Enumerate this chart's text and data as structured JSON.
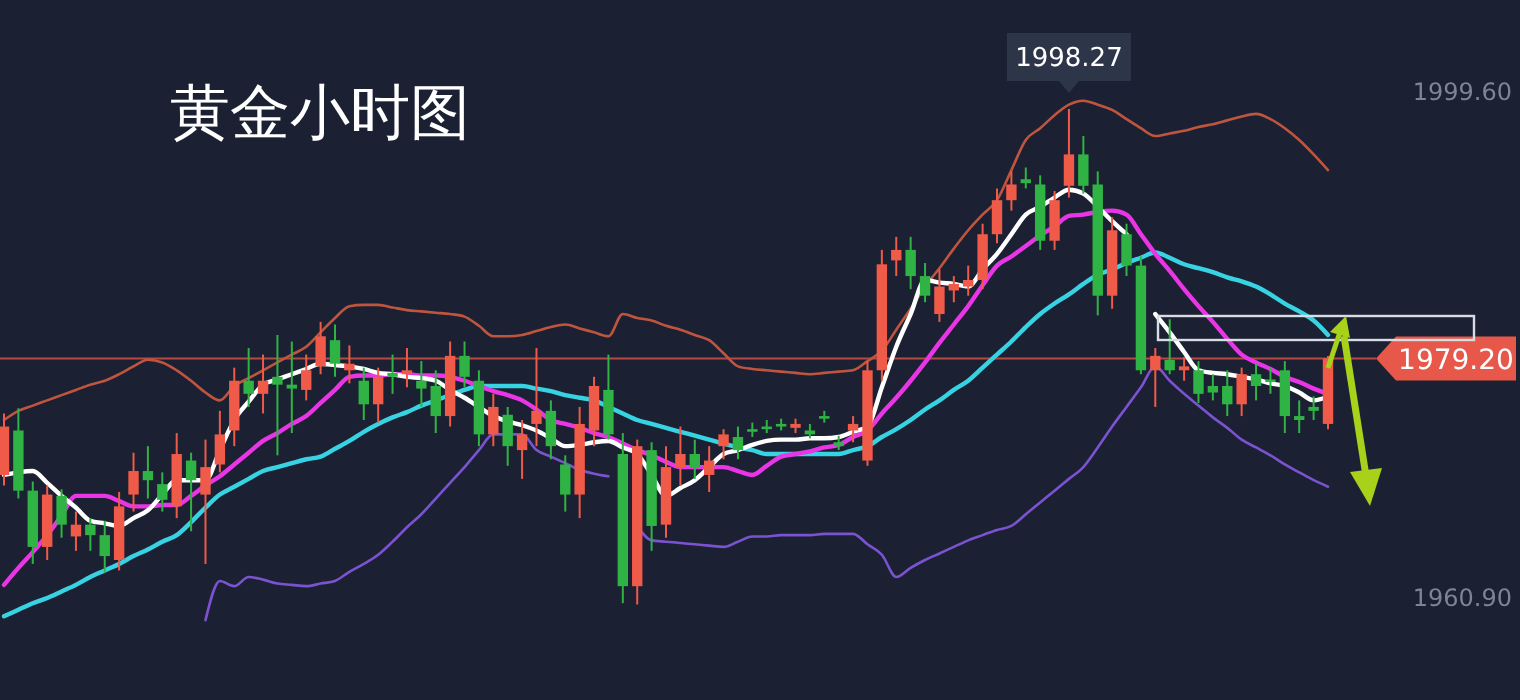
{
  "chart_data": {
    "type": "candlestick",
    "title": "黄金小时图",
    "categories": [
      null,
      null,
      null,
      null,
      null,
      null,
      null,
      null,
      null,
      null,
      null,
      null,
      null,
      null,
      null,
      null,
      null,
      null,
      null,
      null,
      null,
      null,
      null,
      null,
      null,
      null,
      null,
      null,
      null,
      null,
      null,
      null,
      null,
      null,
      null,
      null,
      null,
      null,
      null,
      null,
      null,
      null,
      null,
      null,
      null,
      null,
      null,
      null,
      null,
      null,
      null,
      null,
      null,
      null,
      null,
      null,
      null,
      null,
      null,
      null,
      null,
      null,
      null,
      null,
      null,
      null,
      null,
      null,
      null,
      null,
      null,
      null,
      null,
      null,
      null,
      null,
      null,
      null,
      null,
      null,
      null,
      null,
      null,
      null,
      null,
      null,
      null,
      null,
      null,
      null,
      null,
      null,
      null
    ],
    "ohlc": [
      [
        1970.3,
        1975.0,
        1969.5,
        1974.0
      ],
      [
        1973.7,
        1975.4,
        1968.5,
        1969.1
      ],
      [
        1969.1,
        1969.8,
        1963.5,
        1964.8
      ],
      [
        1964.8,
        1969.5,
        1963.8,
        1968.8
      ],
      [
        1968.7,
        1969.2,
        1965.5,
        1966.5
      ],
      [
        1965.6,
        1967.5,
        1964.5,
        1966.5
      ],
      [
        1966.5,
        1967.0,
        1964.5,
        1965.7
      ],
      [
        1965.7,
        1966.8,
        1962.8,
        1964.1
      ],
      [
        1963.8,
        1969.0,
        1963.0,
        1967.9
      ],
      [
        1968.8,
        1972.0,
        1967.5,
        1970.6
      ],
      [
        1970.6,
        1972.5,
        1968.5,
        1969.9
      ],
      [
        1969.6,
        1970.5,
        1967.5,
        1968.4
      ],
      [
        1967.9,
        1973.5,
        1967.0,
        1971.9
      ],
      [
        1971.4,
        1972.0,
        1966.0,
        1969.9
      ],
      [
        1968.8,
        1973.0,
        1963.5,
        1970.9
      ],
      [
        1971.1,
        1975.2,
        1970.5,
        1973.4
      ],
      [
        1973.7,
        1978.5,
        1972.5,
        1977.5
      ],
      [
        1977.5,
        1980.0,
        1975.5,
        1976.5
      ],
      [
        1976.5,
        1979.5,
        1975.0,
        1977.5
      ],
      [
        1977.8,
        1981.0,
        1971.8,
        1977.2
      ],
      [
        1977.2,
        1980.5,
        1973.5,
        1976.9
      ],
      [
        1976.8,
        1979.5,
        1976.0,
        1978.3
      ],
      [
        1978.6,
        1982.0,
        1978.0,
        1980.9
      ],
      [
        1980.6,
        1981.8,
        1977.8,
        1978.8
      ],
      [
        1978.3,
        1980.2,
        1977.3,
        1978.8
      ],
      [
        1977.5,
        1978.5,
        1974.5,
        1975.7
      ],
      [
        1975.7,
        1978.5,
        1974.3,
        1977.8
      ],
      [
        1978.1,
        1979.5,
        1976.5,
        1977.8
      ],
      [
        1978.0,
        1980.0,
        1977.0,
        1978.3
      ],
      [
        1977.5,
        1979.0,
        1975.5,
        1976.9
      ],
      [
        1977.1,
        1978.3,
        1973.5,
        1974.8
      ],
      [
        1974.8,
        1980.5,
        1974.0,
        1979.4
      ],
      [
        1979.4,
        1980.5,
        1977.0,
        1977.8
      ],
      [
        1977.5,
        1978.3,
        1972.5,
        1973.4
      ],
      [
        1973.4,
        1976.5,
        1972.5,
        1975.5
      ],
      [
        1974.9,
        1975.5,
        1971.0,
        1972.5
      ],
      [
        1972.2,
        1974.5,
        1970.0,
        1973.4
      ],
      [
        1974.2,
        1980.0,
        1972.5,
        1975.2
      ],
      [
        1975.2,
        1976.0,
        1971.5,
        1972.5
      ],
      [
        1971.1,
        1971.8,
        1967.5,
        1968.8
      ],
      [
        1968.8,
        1975.5,
        1967.0,
        1974.2
      ],
      [
        1973.7,
        1977.8,
        1972.5,
        1977.1
      ],
      [
        1976.8,
        1979.5,
        1973.0,
        1973.4
      ],
      [
        1971.9,
        1973.5,
        1960.5,
        1961.8
      ],
      [
        1961.8,
        1973.0,
        1960.4,
        1972.5
      ],
      [
        1972.2,
        1972.8,
        1964.5,
        1966.4
      ],
      [
        1966.5,
        1972.5,
        1965.5,
        1970.9
      ],
      [
        1970.9,
        1974.0,
        1969.5,
        1971.9
      ],
      [
        1971.9,
        1973.0,
        1970.0,
        1970.9
      ],
      [
        1970.3,
        1972.5,
        1969.0,
        1971.4
      ],
      [
        1972.5,
        1973.8,
        1971.5,
        1973.4
      ],
      [
        1973.2,
        1974.0,
        1971.5,
        1972.2
      ],
      [
        1973.8,
        1974.3,
        1973.2,
        1973.6
      ],
      [
        1974.0,
        1974.5,
        1973.5,
        1973.8
      ],
      [
        1974.2,
        1974.6,
        1973.7,
        1974.0
      ],
      [
        1973.9,
        1974.6,
        1973.5,
        1974.2
      ],
      [
        1973.7,
        1974.2,
        1973.1,
        1973.4
      ],
      [
        1974.8,
        1975.2,
        1974.3,
        1974.6
      ],
      [
        1972.8,
        1973.3,
        1972.2,
        1972.5
      ],
      [
        1973.7,
        1974.8,
        1972.8,
        1974.2
      ],
      [
        1971.4,
        1979.0,
        1971.0,
        1978.3
      ],
      [
        1978.3,
        1987.5,
        1977.5,
        1986.4
      ],
      [
        1986.7,
        1988.5,
        1985.5,
        1987.5
      ],
      [
        1987.5,
        1988.5,
        1984.5,
        1985.5
      ],
      [
        1985.5,
        1986.5,
        1983.5,
        1984.0
      ],
      [
        1982.6,
        1986.0,
        1982.0,
        1984.7
      ],
      [
        1984.4,
        1985.5,
        1983.5,
        1984.9
      ],
      [
        1984.7,
        1986.3,
        1984.0,
        1985.2
      ],
      [
        1985.2,
        1989.5,
        1984.5,
        1988.7
      ],
      [
        1988.7,
        1992.2,
        1988.0,
        1991.3
      ],
      [
        1991.3,
        1993.5,
        1990.5,
        1992.5
      ],
      [
        1992.9,
        1993.8,
        1992.2,
        1992.6
      ],
      [
        1992.5,
        1993.2,
        1987.5,
        1988.2
      ],
      [
        1988.2,
        1992.0,
        1987.5,
        1991.3
      ],
      [
        1992.4,
        1998.27,
        1991.5,
        1994.8
      ],
      [
        1994.8,
        1996.2,
        1991.8,
        1992.4
      ],
      [
        1992.5,
        1993.5,
        1982.5,
        1984.0
      ],
      [
        1984.0,
        1990.0,
        1983.0,
        1989.0
      ],
      [
        1988.7,
        1989.5,
        1985.5,
        1986.3
      ],
      [
        1986.3,
        1987.0,
        1978.0,
        1978.3
      ],
      [
        1978.3,
        1980.0,
        1975.5,
        1979.4
      ],
      [
        1979.1,
        1982.2,
        1978.0,
        1978.3
      ],
      [
        1978.3,
        1979.3,
        1977.5,
        1978.6
      ],
      [
        1978.3,
        1979.0,
        1975.8,
        1976.5
      ],
      [
        1977.1,
        1978.0,
        1976.0,
        1976.6
      ],
      [
        1977.1,
        1978.3,
        1974.8,
        1975.7
      ],
      [
        1975.7,
        1978.5,
        1974.8,
        1978.0
      ],
      [
        1978.0,
        1978.8,
        1976.0,
        1977.1
      ],
      [
        1977.6,
        1978.5,
        1976.5,
        1977.4
      ],
      [
        1978.3,
        1979.0,
        1973.5,
        1974.8
      ],
      [
        1974.8,
        1976.0,
        1973.5,
        1974.5
      ],
      [
        1975.5,
        1976.3,
        1974.5,
        1975.2
      ],
      [
        1974.2,
        1979.4,
        1973.8,
        1979.2
      ]
    ],
    "series": [
      {
        "type": "line",
        "color": "#c0553f",
        "values": [
          1974.5,
          1975.2,
          1975.6,
          1976.0,
          1976.4,
          1976.8,
          1977.2,
          1977.5,
          1978.0,
          1978.6,
          1979.1,
          1978.9,
          1978.3,
          1977.5,
          1976.6,
          1976.0,
          1977.1,
          1977.7,
          1978.3,
          1978.9,
          1979.5,
          1980.1,
          1981.2,
          1982.3,
          1983.2,
          1983.3,
          1983.3,
          1983.1,
          1982.9,
          1982.8,
          1982.7,
          1982.6,
          1982.4,
          1981.7,
          1980.9,
          1980.9,
          1981.0,
          1981.3,
          1981.6,
          1981.8,
          1981.5,
          1981.2,
          1980.9,
          1982.6,
          1982.3,
          1982.1,
          1981.7,
          1981.4,
          1981.0,
          1980.6,
          1979.6,
          1978.6,
          1978.4,
          1978.3,
          1978.2,
          1978.1,
          1978.0,
          1978.1,
          1978.2,
          1978.3,
          1979.0,
          1979.8,
          1981.4,
          1983.0,
          1984.7,
          1986.1,
          1987.6,
          1989.0,
          1990.2,
          1991.3,
          1993.6,
          1995.9,
          1996.8,
          1997.8,
          1998.6,
          1998.9,
          1998.6,
          1998.2,
          1997.5,
          1996.8,
          1996.2,
          1996.4,
          1996.6,
          1996.9,
          1997.1,
          1997.4,
          1997.7,
          1997.9,
          1997.5,
          1996.8,
          1995.9,
          1994.8,
          1993.6
        ]
      },
      {
        "type": "line",
        "color": "#7b52d0",
        "values": [
          null,
          null,
          null,
          null,
          null,
          null,
          null,
          null,
          null,
          null,
          null,
          null,
          null,
          null,
          1959.2,
          1962.2,
          1961.8,
          1962.5,
          1962.3,
          1962.0,
          1961.9,
          1961.8,
          1962.0,
          1962.2,
          1962.9,
          1963.5,
          1964.2,
          1965.2,
          1966.3,
          1967.3,
          1968.5,
          1969.7,
          1970.9,
          1972.2,
          1973.4,
          1973.4,
          1973.4,
          1972.2,
          1971.7,
          1971.2,
          1970.7,
          1970.4,
          1970.2,
          null,
          1966.4,
          1965.3,
          1965.2,
          1965.1,
          1965.0,
          1964.9,
          1964.8,
          1965.2,
          1965.6,
          1965.6,
          1965.7,
          1965.7,
          1965.7,
          1965.8,
          1965.8,
          1965.8,
          1965.0,
          1964.2,
          1962.5,
          1963.2,
          1963.8,
          1964.3,
          1964.8,
          1965.3,
          1965.7,
          1966.1,
          1966.4,
          1967.3,
          1968.2,
          1969.1,
          1970.0,
          1970.9,
          1972.4,
          1974.0,
          1975.5,
          1977.0,
          1978.6,
          1977.5,
          1976.5,
          1975.6,
          1974.7,
          1973.9,
          1973.0,
          1972.4,
          1971.8,
          1971.1,
          1970.5,
          1969.9,
          1969.4
        ]
      },
      {
        "type": "line",
        "color": "#38d3e3",
        "values": [
          1959.5,
          1960.0,
          1960.5,
          1960.9,
          1961.4,
          1961.9,
          1962.5,
          1963.0,
          1963.5,
          1964.1,
          1964.6,
          1965.2,
          1965.7,
          1966.7,
          1967.8,
          1968.8,
          1969.4,
          1970.0,
          1970.6,
          1970.9,
          1971.2,
          1971.5,
          1971.7,
          1972.3,
          1972.9,
          1973.6,
          1974.2,
          1974.7,
          1975.1,
          1975.6,
          1976.0,
          1976.4,
          1976.8,
          1977.1,
          1977.1,
          1977.1,
          1977.1,
          1976.9,
          1976.7,
          1976.4,
          1976.2,
          1976.0,
          1975.5,
          1975.0,
          1974.5,
          1974.2,
          1973.9,
          1973.6,
          1973.3,
          1973.0,
          1972.7,
          1972.4,
          1972.2,
          1971.9,
          1971.9,
          1971.9,
          1971.9,
          1971.9,
          1971.9,
          1972.2,
          1972.5,
          1973.2,
          1973.8,
          1974.5,
          1975.3,
          1976.0,
          1976.8,
          1977.5,
          1978.5,
          1979.5,
          1980.5,
          1981.6,
          1982.6,
          1983.4,
          1984.1,
          1984.9,
          1985.6,
          1986.0,
          1986.5,
          1986.9,
          1987.3,
          1986.9,
          1986.4,
          1986.1,
          1985.8,
          1985.4,
          1985.1,
          1984.7,
          1984.1,
          1983.4,
          1982.8,
          1982.1,
          1981.0
        ]
      },
      {
        "type": "line",
        "color": "#e935e6",
        "values": [
          1961.9,
          1963.2,
          1964.4,
          1965.7,
          1967.2,
          1968.7,
          1968.7,
          1968.7,
          1968.3,
          1967.9,
          1967.9,
          1968.0,
          1968.0,
          1968.7,
          1969.5,
          1970.2,
          1971.1,
          1972.0,
          1972.9,
          1973.5,
          1974.2,
          1974.8,
          1975.8,
          1976.8,
          1977.8,
          1977.9,
          1977.9,
          1978.0,
          1978.0,
          1977.9,
          1977.9,
          1977.8,
          1977.5,
          1977.1,
          1976.7,
          1976.4,
          1976.0,
          1975.3,
          1974.5,
          1974.2,
          1973.9,
          1973.5,
          1973.2,
          1972.7,
          1972.2,
          1971.8,
          1971.3,
          1970.9,
          1970.9,
          1970.9,
          1970.9,
          1970.6,
          1970.3,
          1971.0,
          1971.7,
          1971.9,
          1972.1,
          1972.4,
          1972.6,
          1973.2,
          1973.7,
          1975.0,
          1976.2,
          1977.5,
          1978.9,
          1980.4,
          1981.8,
          1983.2,
          1984.8,
          1986.3,
          1987.0,
          1987.8,
          1988.6,
          1989.3,
          1990.1,
          1990.2,
          1990.4,
          1990.5,
          1990.2,
          1988.7,
          1987.2,
          1985.9,
          1984.5,
          1983.2,
          1982.0,
          1980.7,
          1979.5,
          1978.9,
          1978.4,
          1977.8,
          1977.4,
          1976.9,
          1976.5
        ]
      },
      {
        "type": "line",
        "color": "#ffffff",
        "values": [
          1970.3,
          1970.5,
          1970.6,
          1969.7,
          1968.7,
          1967.8,
          1966.8,
          1966.6,
          1966.4,
          1967.0,
          1967.6,
          1968.8,
          1969.9,
          1969.9,
          1969.9,
          1972.2,
          1974.5,
          1975.9,
          1977.2,
          1977.6,
          1978.0,
          1978.4,
          1978.8,
          1978.7,
          1978.6,
          1978.4,
          1978.1,
          1978.0,
          1977.8,
          1977.7,
          1977.5,
          1976.8,
          1976.2,
          1975.5,
          1974.8,
          1974.4,
          1974.1,
          1973.7,
          1973.1,
          1972.5,
          1972.6,
          1972.8,
          1972.9,
          1972.4,
          1971.9,
          1970.3,
          1968.7,
          1969.3,
          1969.9,
          1970.9,
          1971.9,
          1972.2,
          1972.6,
          1972.9,
          1973.0,
          1973.0,
          1973.1,
          1973.1,
          1973.2,
          1973.6,
          1974.0,
          1977.0,
          1980.1,
          1982.6,
          1985.2,
          1985.0,
          1984.9,
          1984.7,
          1986.0,
          1987.2,
          1988.7,
          1990.2,
          1990.8,
          1991.5,
          1992.1,
          1991.8,
          1990.8,
          1989.7,
          1988.7,
          null,
          1982.6,
          1981.2,
          1979.7,
          1978.3,
          1978.1,
          1978.0,
          1977.8,
          1977.6,
          1977.3,
          1977.1,
          1976.6,
          1976.0,
          1976.3
        ]
      }
    ],
    "ylim": [
      1953.1,
      2006.6
    ],
    "yticks": [
      {
        "value": 1999.6,
        "label": "1999.60"
      },
      {
        "value": 1960.9,
        "label": "1960.90"
      }
    ],
    "tick_labels": "y",
    "ref_lines": [
      {
        "axis": "y",
        "value": 1979.2,
        "label": "1979.20",
        "color": "#e8584a"
      }
    ],
    "annotations": [
      {
        "text": "1998.27",
        "y": 1998.27
      }
    ]
  }
}
